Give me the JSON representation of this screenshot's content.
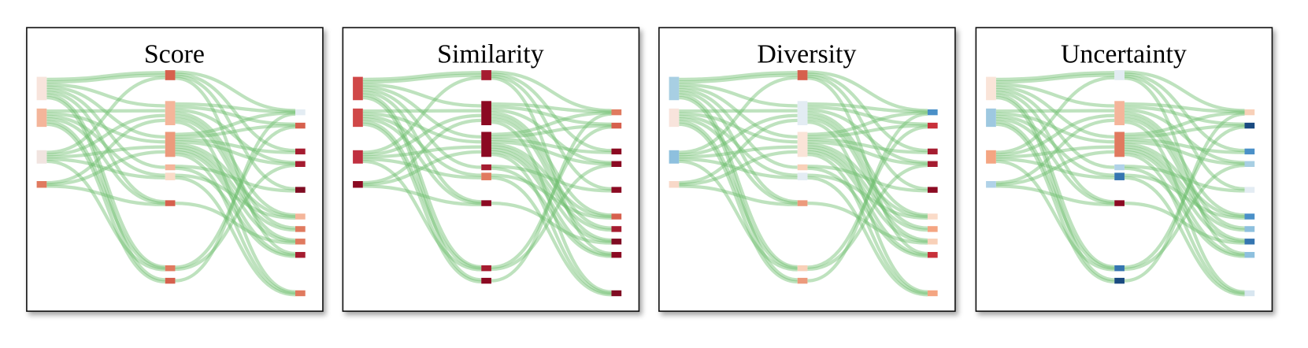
{
  "panels": [
    {
      "title": "Score"
    },
    {
      "title": "Similarity"
    },
    {
      "title": "Diversity"
    },
    {
      "title": "Uncertainty"
    }
  ]
}
